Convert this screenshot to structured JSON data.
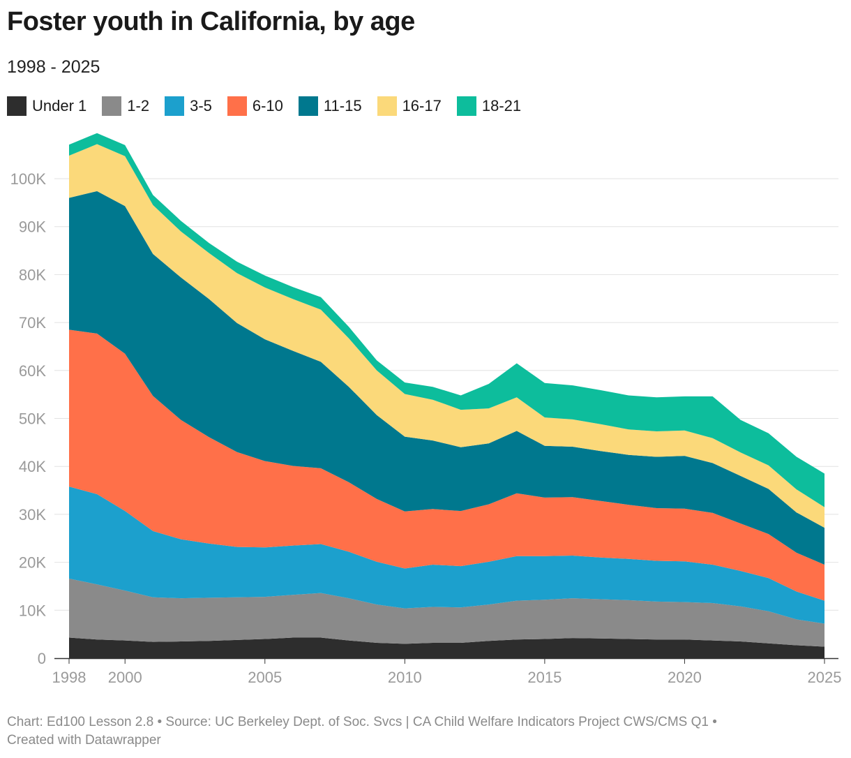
{
  "title": "Foster youth in California, by age",
  "subtitle": "1998 - 2025",
  "footer": {
    "line1": "Chart: Ed100 Lesson 2.8 • Source: UC Berkeley Dept. of Soc. Svcs | CA Child Welfare Indicators Project CWS/CMS Q1 •",
    "line2": "Created with Datawrapper"
  },
  "chart_data": {
    "type": "area",
    "stacked": true,
    "x": [
      1998,
      1999,
      2000,
      2001,
      2002,
      2003,
      2004,
      2005,
      2006,
      2007,
      2008,
      2009,
      2010,
      2011,
      2012,
      2013,
      2014,
      2015,
      2016,
      2017,
      2018,
      2019,
      2020,
      2021,
      2022,
      2023,
      2024,
      2025
    ],
    "xticks": [
      "1998",
      "2000",
      "2005",
      "2010",
      "2015",
      "2020",
      "2025"
    ],
    "yticks": [
      "0",
      "10K",
      "20K",
      "30K",
      "40K",
      "50K",
      "60K",
      "70K",
      "80K",
      "90K",
      "100K"
    ],
    "ylim": [
      0,
      110000
    ],
    "grid": true,
    "legend_position": "top-left",
    "series": [
      {
        "name": "Under 1",
        "color": "#2d2d2d",
        "values": [
          4300,
          3900,
          3700,
          3400,
          3500,
          3600,
          3800,
          4000,
          4300,
          4300,
          3700,
          3200,
          3000,
          3200,
          3200,
          3600,
          3900,
          4000,
          4200,
          4100,
          4000,
          3900,
          3900,
          3700,
          3500,
          3100,
          2700,
          2400
        ]
      },
      {
        "name": "1-2",
        "color": "#8a8a8a",
        "values": [
          12300,
          11500,
          10400,
          9300,
          9000,
          9000,
          8900,
          8800,
          8900,
          9300,
          8800,
          8000,
          7400,
          7500,
          7400,
          7600,
          8100,
          8200,
          8300,
          8200,
          8100,
          7900,
          7800,
          7800,
          7300,
          6700,
          5400,
          4800
        ]
      },
      {
        "name": "3-5",
        "color": "#1ca0cd",
        "values": [
          19200,
          18800,
          16600,
          13800,
          12300,
          11300,
          10500,
          10300,
          10300,
          10200,
          9700,
          8900,
          8300,
          8800,
          8600,
          8900,
          9300,
          9100,
          8900,
          8700,
          8600,
          8500,
          8500,
          8000,
          7400,
          6900,
          5800,
          4800
        ]
      },
      {
        "name": "6-10",
        "color": "#ff7049",
        "values": [
          32700,
          33500,
          32800,
          28200,
          24900,
          22200,
          19800,
          18000,
          16600,
          15800,
          14500,
          13100,
          11900,
          11600,
          11500,
          12000,
          13100,
          12200,
          12200,
          11800,
          11300,
          11000,
          11000,
          10800,
          9900,
          9200,
          8100,
          7500
        ]
      },
      {
        "name": "11-15",
        "color": "#00788e",
        "values": [
          27500,
          29700,
          30800,
          29600,
          29700,
          28800,
          26900,
          25400,
          24000,
          22200,
          19900,
          17500,
          15600,
          14300,
          13300,
          12700,
          13000,
          10800,
          10500,
          10400,
          10400,
          10700,
          11000,
          10400,
          9900,
          9400,
          8400,
          7700
        ]
      },
      {
        "name": "16-17",
        "color": "#fbd97a",
        "values": [
          8800,
          9800,
          10400,
          10200,
          9600,
          9600,
          10400,
          10800,
          10800,
          10900,
          10100,
          9300,
          8900,
          8500,
          7800,
          7300,
          7000,
          5900,
          5700,
          5600,
          5300,
          5300,
          5300,
          5200,
          4900,
          4900,
          4800,
          4300
        ]
      },
      {
        "name": "18-21",
        "color": "#0dbd9c",
        "values": [
          2300,
          2300,
          2300,
          2100,
          2200,
          2100,
          2400,
          2500,
          2500,
          2600,
          2400,
          2100,
          2400,
          2700,
          3000,
          5100,
          7100,
          7200,
          7100,
          7100,
          7100,
          7100,
          7100,
          8700,
          6800,
          6700,
          6800,
          7000
        ]
      }
    ]
  }
}
